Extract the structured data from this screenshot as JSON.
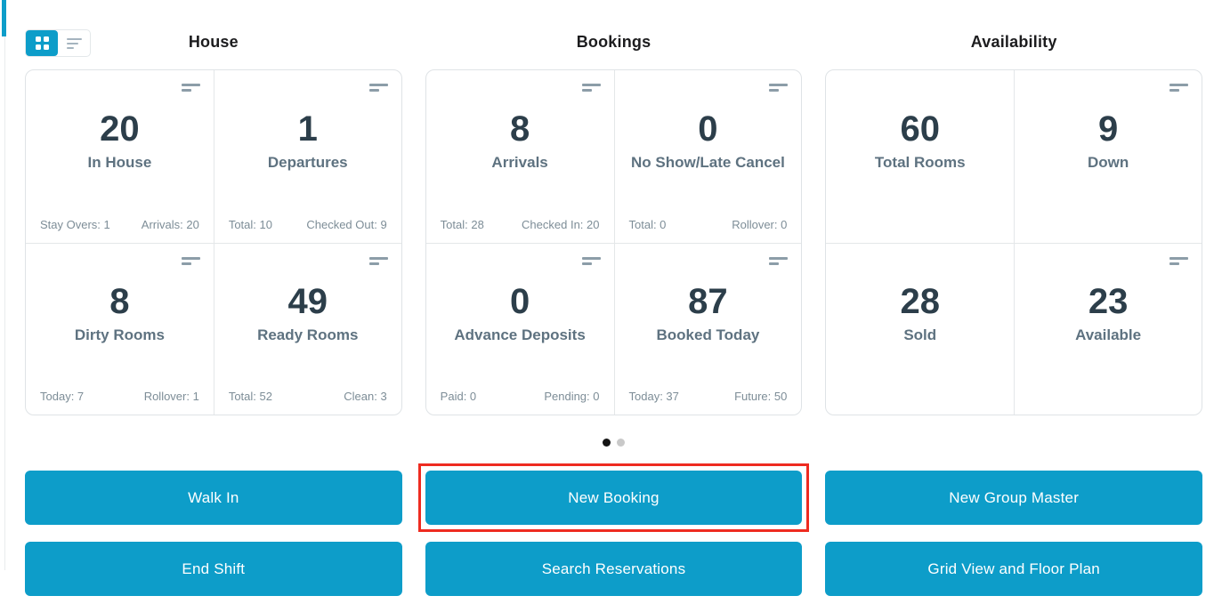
{
  "colors": {
    "accent_blue": "#0d9dc9",
    "highlight_red": "#ee2b20",
    "value_text": "#2c3e4a",
    "label_text": "#5e7280"
  },
  "view_toggle": {
    "grid": "grid-view",
    "list": "list-view",
    "active": "grid-view"
  },
  "sections": [
    {
      "title": "House",
      "cards": [
        {
          "value": "20",
          "label": "In House",
          "stat_left": "Stay Overs: 1",
          "stat_right": "Arrivals: 20"
        },
        {
          "value": "1",
          "label": "Departures",
          "stat_left": "Total: 10",
          "stat_right": "Checked Out: 9"
        },
        {
          "value": "8",
          "label": "Dirty Rooms",
          "stat_left": "Today: 7",
          "stat_right": "Rollover: 1"
        },
        {
          "value": "49",
          "label": "Ready Rooms",
          "stat_left": "Total: 52",
          "stat_right": "Clean: 3"
        }
      ]
    },
    {
      "title": "Bookings",
      "cards": [
        {
          "value": "8",
          "label": "Arrivals",
          "stat_left": "Total: 28",
          "stat_right": "Checked In: 20"
        },
        {
          "value": "0",
          "label": "No Show/Late Cancel",
          "stat_left": "Total: 0",
          "stat_right": "Rollover: 0"
        },
        {
          "value": "0",
          "label": "Advance Deposits",
          "stat_left": "Paid: 0",
          "stat_right": "Pending: 0"
        },
        {
          "value": "87",
          "label": "Booked Today",
          "stat_left": "Today: 37",
          "stat_right": "Future: 50"
        }
      ]
    },
    {
      "title": "Availability",
      "cards": [
        {
          "value": "60",
          "label": "Total Rooms"
        },
        {
          "value": "9",
          "label": "Down"
        },
        {
          "value": "28",
          "label": "Sold"
        },
        {
          "value": "23",
          "label": "Available"
        }
      ]
    }
  ],
  "pagination": {
    "total_pages": 2,
    "active_page": 1
  },
  "buttons": [
    {
      "label": "Walk In",
      "highlighted": false
    },
    {
      "label": "New Booking",
      "highlighted": true
    },
    {
      "label": "New Group Master",
      "highlighted": false
    },
    {
      "label": "End Shift",
      "highlighted": false
    },
    {
      "label": "Search Reservations",
      "highlighted": false
    },
    {
      "label": "Grid View and Floor Plan",
      "highlighted": false
    }
  ]
}
